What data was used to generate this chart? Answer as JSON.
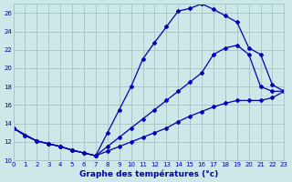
{
  "title": "Graphe des températures (°c)",
  "background_color": "#cce8e8",
  "grid_color": "#a8c8c8",
  "line_color": "#0000bb",
  "xlim": [
    0,
    23
  ],
  "ylim": [
    10,
    27
  ],
  "xticks": [
    0,
    1,
    2,
    3,
    4,
    5,
    6,
    7,
    8,
    9,
    10,
    11,
    12,
    13,
    14,
    15,
    16,
    17,
    18,
    19,
    20,
    21,
    22,
    23
  ],
  "yticks": [
    10,
    12,
    14,
    16,
    18,
    20,
    22,
    24,
    26
  ],
  "line1_x": [
    0,
    1,
    2,
    3,
    4,
    5,
    6,
    7,
    8,
    9,
    10,
    11,
    12,
    13,
    14,
    15,
    16,
    17,
    18,
    19,
    20,
    21,
    22,
    23
  ],
  "line1_y": [
    13.5,
    12.7,
    12.1,
    11.8,
    11.5,
    11.1,
    10.8,
    10.5,
    13.0,
    15.5,
    18.0,
    21.0,
    22.8,
    24.5,
    26.2,
    26.5,
    27.0,
    26.4,
    25.7,
    25.0,
    22.2,
    21.5,
    18.2,
    17.5
  ],
  "line2_x": [
    0,
    2,
    3,
    4,
    5,
    6,
    7,
    8,
    9,
    10,
    11,
    12,
    13,
    14,
    15,
    16,
    17,
    18,
    19,
    20,
    21,
    22,
    23
  ],
  "line2_y": [
    13.5,
    12.1,
    11.8,
    11.5,
    11.1,
    10.8,
    10.5,
    11.5,
    12.5,
    13.5,
    14.5,
    15.5,
    16.5,
    17.5,
    18.5,
    19.5,
    21.5,
    22.2,
    22.5,
    21.5,
    18.0,
    17.5,
    17.5
  ],
  "line3_x": [
    0,
    1,
    2,
    3,
    4,
    5,
    6,
    7,
    8,
    9,
    10,
    11,
    12,
    13,
    14,
    15,
    16,
    17,
    18,
    19,
    20,
    21,
    22,
    23
  ],
  "line3_y": [
    13.5,
    12.7,
    12.1,
    11.8,
    11.5,
    11.1,
    10.8,
    10.5,
    11.0,
    11.5,
    12.0,
    12.5,
    13.0,
    13.5,
    14.2,
    14.8,
    15.3,
    15.8,
    16.2,
    16.5,
    16.5,
    16.5,
    16.8,
    17.5
  ]
}
